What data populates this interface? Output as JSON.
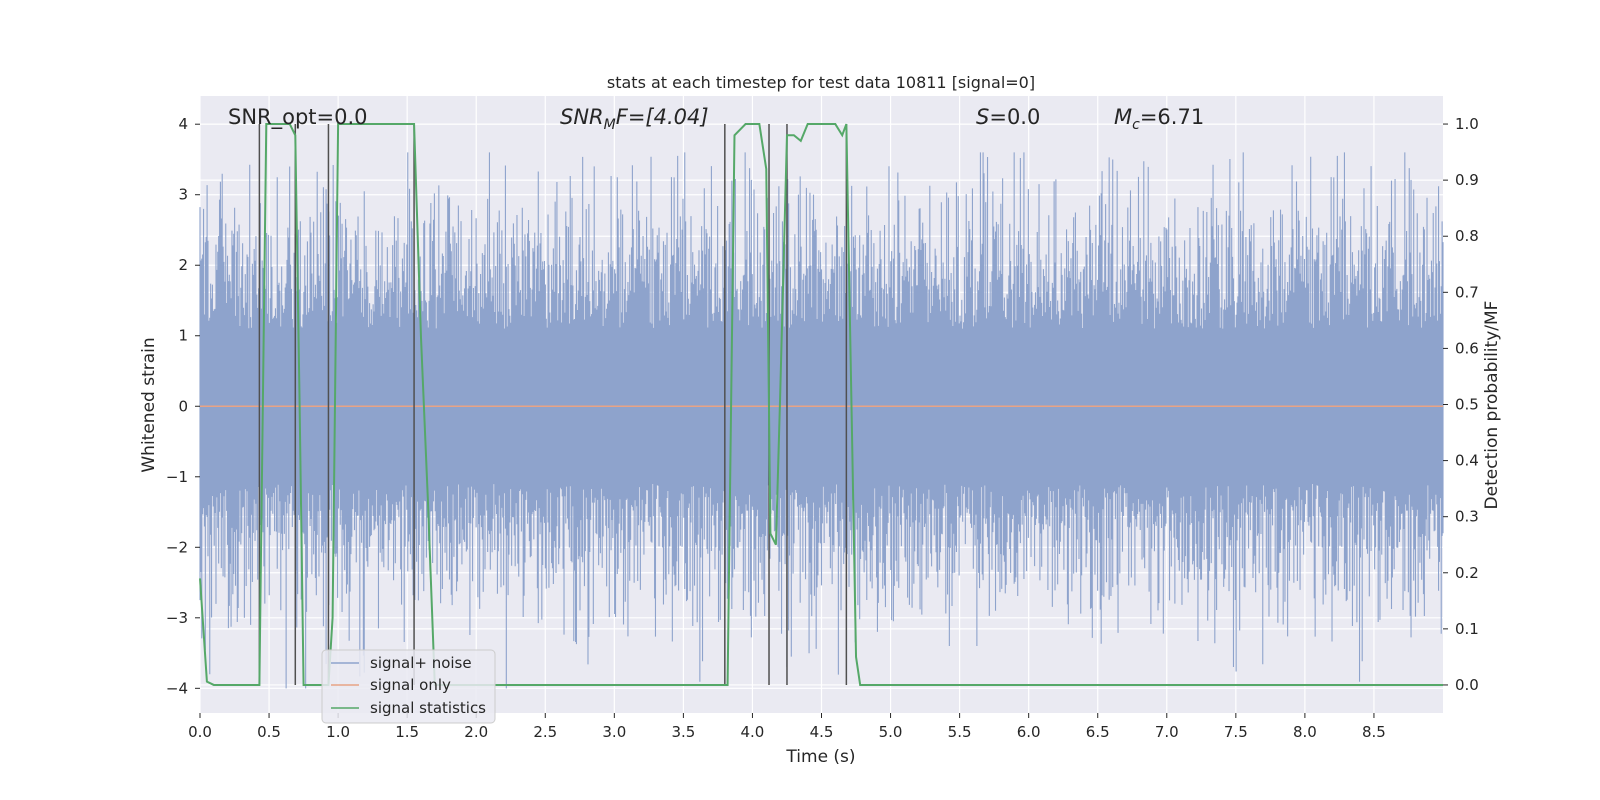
{
  "chart_data": {
    "type": "line",
    "title": "stats at each timestep for test data 10811 [signal=0]",
    "xlabel": "Time (s)",
    "ylabel_left": "Whitened strain",
    "ylabel_right": "Detection probability/MF",
    "xlim": [
      0,
      9.0
    ],
    "ylim_left": [
      -4.35,
      4.4
    ],
    "ylim_right": [
      -0.05,
      1.05
    ],
    "grid": true,
    "x_ticks": [
      "0.0",
      "0.5",
      "1.0",
      "1.5",
      "2.0",
      "2.5",
      "3.0",
      "3.5",
      "4.0",
      "4.5",
      "5.0",
      "5.5",
      "6.0",
      "6.5",
      "7.0",
      "7.5",
      "8.0",
      "8.5"
    ],
    "y_ticks_left": [
      "−4",
      "−3",
      "−2",
      "−1",
      "0",
      "1",
      "2",
      "3",
      "4"
    ],
    "y_ticks_right": [
      "0.0",
      "0.1",
      "0.2",
      "0.3",
      "0.4",
      "0.5",
      "0.6",
      "0.7",
      "0.8",
      "0.9",
      "1.0"
    ],
    "annotations": {
      "snr_opt": "SNR_opt=0.0",
      "snr_mf_sym": "SNR",
      "snr_mf_sub": "M",
      "snr_mf_rest": "F=[4.04]",
      "s_sym": "S",
      "s_rest": "=0.0",
      "mc_sym": "M",
      "mc_sub": "c",
      "mc_rest": "=6.71"
    },
    "legend": {
      "placement": "lower-left",
      "entries": [
        "signal+ noise",
        "signal only",
        "signal statistics"
      ]
    },
    "colors": {
      "noise": "#8ea3cc",
      "signal": "#e8a385",
      "stats": "#55a868",
      "vlines": "#505050",
      "background": "#eaeaf2",
      "grid": "#ffffff"
    },
    "series": [
      {
        "name": "signal+ noise",
        "description_free": true,
        "noise_envelope_sigma": 0.85,
        "peak_range": [
          -4,
          3.6
        ]
      },
      {
        "name": "signal only",
        "x": [
          0,
          9.0
        ],
        "y": [
          0,
          0
        ]
      },
      {
        "name": "signal statistics",
        "x": [
          0.0,
          0.05,
          0.1,
          0.15,
          0.2,
          0.25,
          0.3,
          0.35,
          0.4,
          0.43,
          0.48,
          0.5,
          0.55,
          0.6,
          0.65,
          0.69,
          0.72,
          0.75,
          0.8,
          0.85,
          0.9,
          0.93,
          0.96,
          1.0,
          1.05,
          1.1,
          1.2,
          1.3,
          1.4,
          1.5,
          1.55,
          1.6,
          1.65,
          1.7,
          1.8,
          2.0,
          2.5,
          3.0,
          3.5,
          3.8,
          3.82,
          3.87,
          3.95,
          4.0,
          4.05,
          4.1,
          4.13,
          4.17,
          4.2,
          4.25,
          4.3,
          4.35,
          4.4,
          4.45,
          4.5,
          4.55,
          4.6,
          4.65,
          4.68,
          4.72,
          4.75,
          4.78,
          4.82,
          5.0,
          6.0,
          7.0,
          8.0,
          9.0
        ],
        "y": [
          0.19,
          0.006,
          0.0,
          0.0,
          0.0,
          0.0,
          0.0,
          0.0,
          0.0,
          0.0,
          1.0,
          1.0,
          1.0,
          1.0,
          1.0,
          0.98,
          0.52,
          0.0,
          0.0,
          0.0,
          0.0,
          0.0,
          0.12,
          1.0,
          1.0,
          1.0,
          1.0,
          1.0,
          1.0,
          1.0,
          1.0,
          0.62,
          0.33,
          0.0,
          0.0,
          0.0,
          0.0,
          0.0,
          0.0,
          0.0,
          0.0,
          0.98,
          1.0,
          1.0,
          1.0,
          0.92,
          0.27,
          0.25,
          0.51,
          0.98,
          0.98,
          0.97,
          1.0,
          1.0,
          1.0,
          1.0,
          1.0,
          0.98,
          1.0,
          0.46,
          0.05,
          0.0,
          0.0,
          0.0,
          0.0,
          0.0,
          0.0,
          0.0
        ]
      }
    ],
    "vertical_lines_x": [
      0.43,
      0.69,
      0.93,
      1.55,
      3.8,
      4.12,
      4.25,
      4.68
    ]
  }
}
